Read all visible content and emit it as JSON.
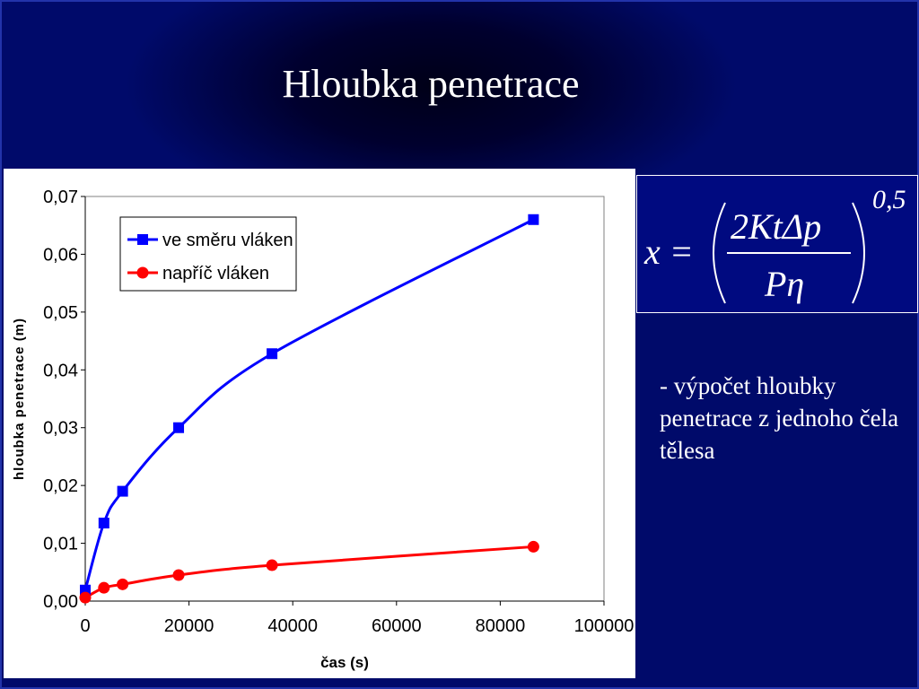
{
  "slide": {
    "title": "Hloubka penetrace",
    "description": "- výpočet hloubky penetrace z jednoho čela tělesa"
  },
  "formula": {
    "lhs": "x =",
    "numerator": "2KtΔp",
    "denominator": "Pη",
    "exponent": "0,5"
  },
  "colors": {
    "background": "#000a80",
    "series_1": "#0000ff",
    "series_2": "#ff0000"
  },
  "chart_data": {
    "type": "line",
    "xlabel": "čas (s)",
    "ylabel": "hloubka penetrace (m)",
    "xlim": [
      0,
      100000
    ],
    "ylim": [
      0,
      0.07
    ],
    "x_ticks": [
      0,
      20000,
      40000,
      60000,
      80000,
      100000
    ],
    "x_tick_labels": [
      "0",
      "20000",
      "40000",
      "60000",
      "80000",
      "100000"
    ],
    "y_ticks": [
      0,
      0.01,
      0.02,
      0.03,
      0.04,
      0.05,
      0.06,
      0.07
    ],
    "y_tick_labels": [
      "0,00",
      "0,01",
      "0,02",
      "0,03",
      "0,04",
      "0,05",
      "0,06",
      "0,07"
    ],
    "grid": false,
    "legend_position": "top-left",
    "series": [
      {
        "name": "ve směru vláken",
        "color": "#0000ff",
        "marker": "square",
        "points": [
          {
            "x": 0,
            "y": 0.0019
          },
          {
            "x": 3600,
            "y": 0.0135
          },
          {
            "x": 7200,
            "y": 0.019
          },
          {
            "x": 18000,
            "y": 0.03
          },
          {
            "x": 36000,
            "y": 0.0428
          },
          {
            "x": 86400,
            "y": 0.066
          }
        ]
      },
      {
        "name": "napříč vláken",
        "color": "#ff0000",
        "marker": "circle",
        "points": [
          {
            "x": 0,
            "y": 0.0006
          },
          {
            "x": 3600,
            "y": 0.0023
          },
          {
            "x": 7200,
            "y": 0.0029
          },
          {
            "x": 18000,
            "y": 0.0045
          },
          {
            "x": 36000,
            "y": 0.0062
          },
          {
            "x": 86400,
            "y": 0.0094
          }
        ]
      }
    ]
  }
}
